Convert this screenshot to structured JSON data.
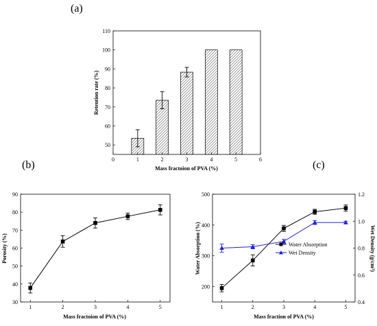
{
  "chart_data": [
    {
      "panel": "(a)",
      "type": "bar",
      "x_ticks": [
        "0",
        "1",
        "2",
        "3",
        "4",
        "5",
        "6"
      ],
      "y_ticks": [
        "50",
        "60",
        "70",
        "80",
        "90",
        "100",
        "110"
      ],
      "categories": [
        "1",
        "2",
        "3",
        "4",
        "5"
      ],
      "values": [
        53.5,
        73.5,
        88.3,
        100,
        100
      ],
      "errors": [
        4.5,
        4.5,
        2.5,
        0,
        0
      ],
      "xlabel": "Mass fractoion of PVA (%)",
      "ylabel": "Retention rate (%)",
      "xlim": [
        0,
        6
      ],
      "ylim": [
        45,
        110
      ],
      "grid": false
    },
    {
      "panel": "(b)",
      "type": "line",
      "x_ticks": [
        "1",
        "2",
        "3",
        "4",
        "5"
      ],
      "y_ticks": [
        "30",
        "40",
        "50",
        "60",
        "70",
        "80",
        "90"
      ],
      "x": [
        1,
        2,
        3,
        4,
        5
      ],
      "values": [
        37.8,
        63.7,
        74,
        77.7,
        81.3
      ],
      "errors": [
        2.8,
        3.2,
        2.8,
        1.8,
        2.8
      ],
      "xlabel": "Mass fractoion of PVA (%)",
      "ylabel": "Porosity (%)",
      "xlim": [
        0.7,
        5.3
      ],
      "ylim": [
        30,
        90
      ],
      "grid": false
    },
    {
      "panel": "(c)",
      "type": "line",
      "x_ticks": [
        "1",
        "2",
        "3",
        "4",
        "5"
      ],
      "y_ticks_left": [
        "200",
        "300",
        "400",
        "500"
      ],
      "y_ticks_right": [
        "0.4",
        "0.6",
        "0.8",
        "1.0",
        "1.2"
      ],
      "x": [
        1,
        2,
        3,
        4,
        5
      ],
      "series": [
        {
          "name": "Water Absorption",
          "axis": "left",
          "color": "#000000",
          "marker": "square",
          "values": [
            195,
            285,
            389,
            443,
            455
          ],
          "errors": [
            12,
            18,
            10,
            8,
            10
          ]
        },
        {
          "name": "Wet Density",
          "axis": "right",
          "color": "#1f1fe0",
          "marker": "triangle",
          "values": [
            0.8,
            0.81,
            0.85,
            0.99,
            0.99
          ],
          "errors": [
            0.03,
            0.015,
            0.015,
            0.015,
            0.01
          ]
        }
      ],
      "xlabel": "Mass fraction of PVA (%)",
      "ylabel_left": "Water Absorption (%)",
      "ylabel_right": "Wet Density (g/cm³)",
      "xlim": [
        0.7,
        5.3
      ],
      "ylim_left": [
        150,
        500
      ],
      "ylim_right": [
        0.4,
        1.2
      ],
      "legend_position": "center-right",
      "grid": false
    }
  ]
}
